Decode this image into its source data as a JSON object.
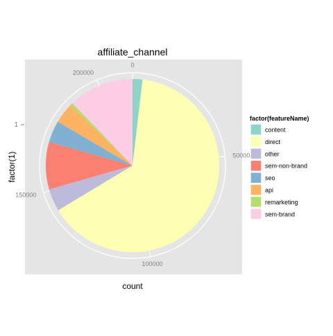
{
  "chart_data": {
    "type": "pie",
    "title": "affiliate_channel",
    "xlabel": "count",
    "ylabel": "factor(1)",
    "y_tick_labels": [
      "1"
    ],
    "radial_ticks": [
      {
        "value": 0,
        "label": "0"
      },
      {
        "value": 50000,
        "label": "50000"
      },
      {
        "value": 100000,
        "label": "100000"
      },
      {
        "value": 150000,
        "label": "150000"
      },
      {
        "value": 200000,
        "label": "200000"
      }
    ],
    "total": 213451,
    "legend": {
      "title": "factor(featureName)",
      "position": "right"
    },
    "grid": true,
    "series": [
      {
        "name": "content",
        "value": 3948,
        "color": "#8DD3C7"
      },
      {
        "name": "direct",
        "value": 137727,
        "color": "#FFFFB3"
      },
      {
        "name": "other",
        "value": 8961,
        "color": "#BEBADA"
      },
      {
        "name": "sem-non-brand",
        "value": 18844,
        "color": "#FB8072"
      },
      {
        "name": "seo",
        "value": 8663,
        "color": "#80B1D3"
      },
      {
        "name": "api",
        "value": 8167,
        "color": "#FDB462"
      },
      {
        "name": "remarketing",
        "value": 1096,
        "color": "#B3DE69"
      },
      {
        "name": "sem-brand",
        "value": 26045,
        "color": "#FCCDE5"
      }
    ]
  }
}
